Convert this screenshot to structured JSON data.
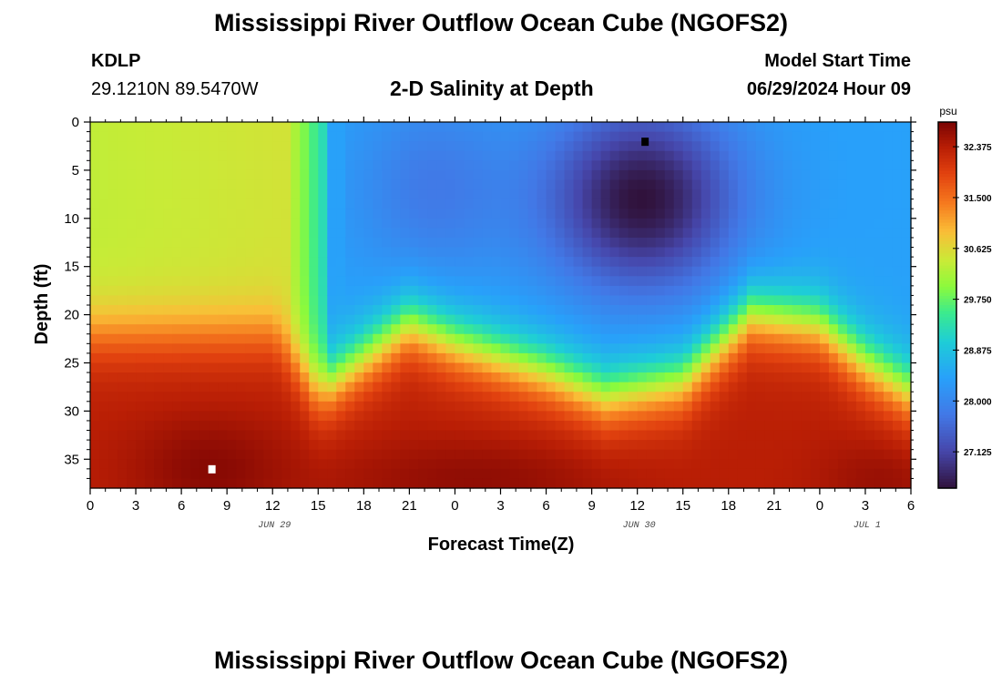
{
  "header": {
    "title": "Mississippi River Outflow Ocean Cube (NGOFS2)",
    "station": "KDLP",
    "location": "29.1210N  89.5470W",
    "subtitle": "2-D Salinity at Depth",
    "model_start_label": "Model Start Time",
    "model_start_value": "06/29/2024 Hour 09"
  },
  "footer": {
    "title": "Mississippi River Outflow Ocean Cube (NGOFS2)"
  },
  "chart_data": {
    "type": "heatmap",
    "title": "2-D Salinity at Depth",
    "xlabel": "Forecast Time(Z)",
    "ylabel": "Depth (ft)",
    "x_ticks": [
      "0",
      "3",
      "6",
      "9",
      "12",
      "15",
      "18",
      "21",
      "0",
      "3",
      "6",
      "9",
      "12",
      "15",
      "18",
      "21",
      "0",
      "3",
      "6"
    ],
    "date_labels": [
      {
        "label": "JUN 29",
        "at_tick": 4
      },
      {
        "label": "JUN 30",
        "at_tick": 12
      },
      {
        "label": "JUL 1",
        "at_tick": 17
      }
    ],
    "y_ticks": [
      "0",
      "5",
      "10",
      "15",
      "20",
      "25",
      "30",
      "35"
    ],
    "ylim": [
      0,
      38
    ],
    "y_inverted": true,
    "colorbar": {
      "unit": "psu",
      "min": 26.5,
      "max": 32.8,
      "ticks": [
        "32.375",
        "31.500",
        "30.625",
        "29.750",
        "28.875",
        "28.000",
        "27.125"
      ]
    },
    "markers": [
      {
        "name": "max",
        "color": "#ffffff",
        "x_tick": 2.67,
        "depth": 36
      },
      {
        "name": "min",
        "color": "#000000",
        "x_tick": 12.17,
        "depth": 2
      }
    ]
  }
}
